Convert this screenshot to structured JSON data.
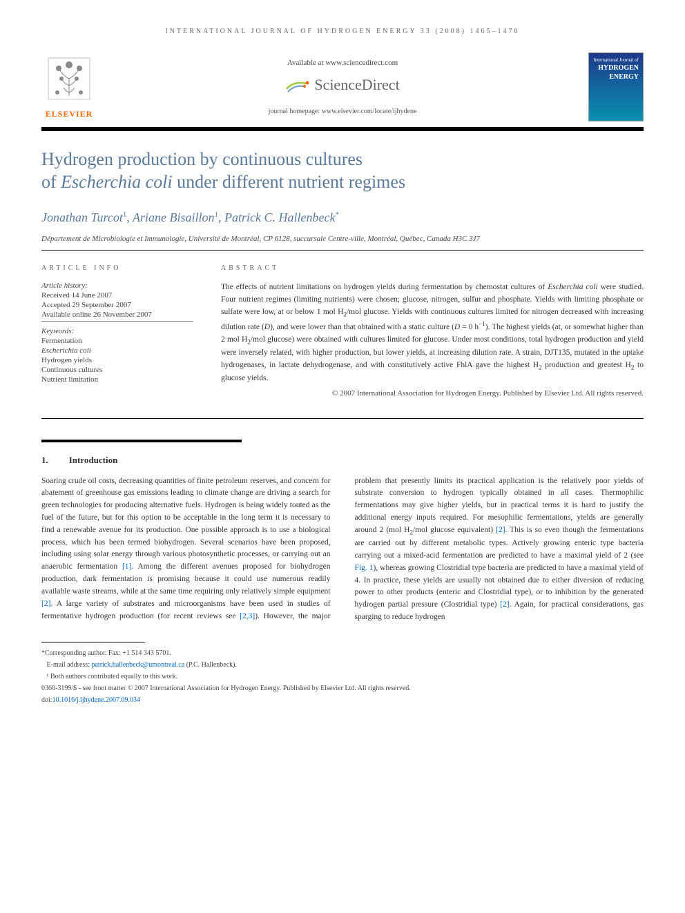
{
  "running_head": "INTERNATIONAL JOURNAL OF HYDROGEN ENERGY 33 (2008) 1465–1470",
  "header": {
    "available_at": "Available at www.sciencedirect.com",
    "sciencedirect": "ScienceDirect",
    "journal_homepage": "journal homepage: www.elsevier.com/locate/ijhydene",
    "elsevier": "ELSEVIER",
    "cover_small": "International Journal of",
    "cover_main1": "HYDROGEN",
    "cover_main2": "ENERGY"
  },
  "title_line1": "Hydrogen production by continuous cultures",
  "title_line2_a": "of ",
  "title_line2_b": "Escherchia coli",
  "title_line2_c": " under different nutrient regimes",
  "authors_html": "Jonathan Turcot¹, Ariane Bisaillon¹, Patrick C. Hallenbeck*",
  "authors": [
    {
      "name": "Jonathan Turcot",
      "sup": "1"
    },
    {
      "name": "Ariane Bisaillon",
      "sup": "1"
    },
    {
      "name": "Patrick C. Hallenbeck",
      "sup": "*"
    }
  ],
  "affiliation": "Département de Microbiologie et Immunologie, Université de Montréal, CP 6128, succursale Centre-ville, Montréal, Québec, Canada H3C 3J7",
  "info": {
    "heading": "ARTICLE INFO",
    "history_label": "Article history:",
    "received": "Received 14 June 2007",
    "accepted": "Accepted 29 September 2007",
    "online": "Available online 26 November 2007",
    "kw_label": "Keywords:",
    "kw": [
      "Fermentation",
      "Escherichia coli",
      "Hydrogen yields",
      "Continuous cultures",
      "Nutrient limitation"
    ]
  },
  "abstract": {
    "heading": "ABSTRACT",
    "text": "The effects of nutrient limitations on hydrogen yields during fermentation by chemostat cultures of Escherchia coli were studied. Four nutrient regimes (limiting nutrients) were chosen; glucose, nitrogen, sulfur and phosphate. Yields with limiting phosphate or sulfate were low, at or below 1 mol H₂/mol glucose. Yields with continuous cultures limited for nitrogen decreased with increasing dilution rate (D), and were lower than that obtained with a static culture (D = 0 h⁻¹). The highest yields (at, or somewhat higher than 2 mol H₂/mol glucose) were obtained with cultures limited for glucose. Under most conditions, total hydrogen production and yield were inversely related, with higher production, but lower yields, at increasing dilution rate. A strain, DJT135, mutated in the uptake hydrogenases, in lactate dehydrogenase, and with constitutively active FhlA gave the highest H₂ production and greatest H₂ to glucose yields.",
    "copyright": "© 2007 International Association for Hydrogen Energy. Published by Elsevier Ltd. All rights reserved."
  },
  "section1": {
    "num": "1.",
    "title": "Introduction",
    "body": "Soaring crude oil costs, decreasing quantities of finite petroleum reserves, and concern for abatement of greenhouse gas emissions leading to climate change are driving a search for green technologies for producing alternative fuels. Hydrogen is being widely touted as the fuel of the future, but for this option to be acceptable in the long term it is necessary to find a renewable avenue for its production. One possible approach is to use a biological process, which has been termed biohydrogen. Several scenarios have been proposed, including using solar energy through various photosynthetic processes, or carrying out an anaerobic fermentation [1]. Among the different avenues proposed for biohydrogen production, dark fermentation is promising because it could use numerous readily available waste streams, while at the same time requiring only relatively simple equipment [2]. A large variety of substrates and microorganisms have been used in studies of fermentative hydrogen production (for recent reviews see [2,3]). However, the major problem that presently limits its practical application is the relatively poor yields of substrate conversion to hydrogen typically obtained in all cases. Thermophilic fermentations may give higher yields, but in practical terms it is hard to justify the additional energy inputs required. For mesophilic fermentations, yields are generally around 2 (mol H₂/mol glucose equivalent) [2]. This is so even though the fermentations are carried out by different metabolic types. Actively growing enteric type bacteria carrying out a mixed-acid fermentation are predicted to have a maximal yield of 2 (see Fig. 1), whereas growing Clostridial type bacteria are predicted to have a maximal yield of 4. In practice, these yields are usually not obtained due to either diversion of reducing power to other products (enteric and Clostridial type), or to inhibition by the generated hydrogen partial pressure (Clostridial type) [2]. Again, for practical considerations, gas sparging to reduce hydrogen"
  },
  "footnotes": {
    "corresponding": "*Corresponding author. Fax: +1 514 343 5701.",
    "email_label": "E-mail address: ",
    "email": "patrick.hallenbeck@umontreal.ca",
    "email_suffix": " (P.C. Hallenbeck).",
    "equal": "¹ Both authors contributed equally to this work.",
    "front_matter": "0360-3199/$ - see front matter © 2007 International Association for Hydrogen Energy. Published by Elsevier Ltd. All rights reserved.",
    "doi_label": "doi:",
    "doi": "10.1016/j.ijhydene.2007.09.034"
  },
  "colors": {
    "title_color": "#5b7a9a",
    "link_color": "#0066cc",
    "elsevier_orange": "#ff6600",
    "text": "#333333",
    "muted": "#666666"
  }
}
